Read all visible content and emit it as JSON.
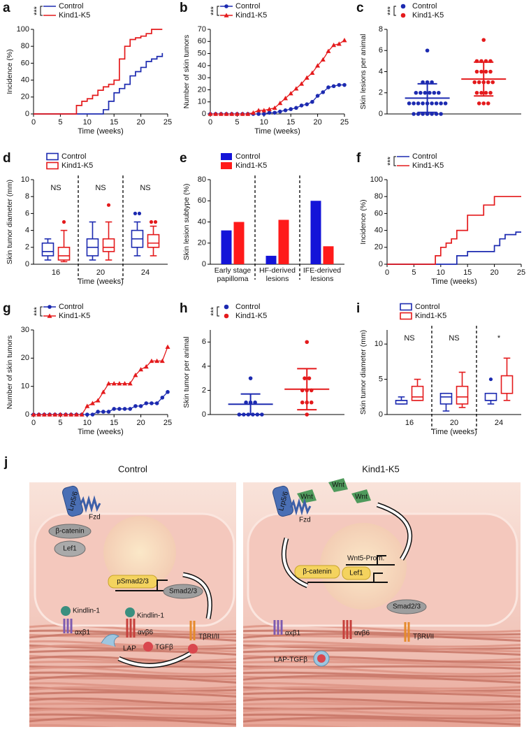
{
  "chart_data": [
    {
      "panel": "a",
      "type": "step",
      "ylabel": "Incidence (%)",
      "xlabel": "Time (weeks)",
      "significance": "***",
      "xlim": [
        0,
        25
      ],
      "xticks": [
        0,
        5,
        10,
        15,
        20,
        25
      ],
      "ylim": [
        0,
        100
      ],
      "yticks": [
        0,
        20,
        40,
        60,
        80,
        100
      ],
      "series": [
        {
          "name": "Control",
          "color": "#1c2ab0",
          "x": [
            0,
            13,
            14,
            15,
            16,
            17,
            18,
            19,
            20,
            21,
            22,
            23,
            24
          ],
          "values": [
            0,
            5,
            15,
            25,
            30,
            35,
            45,
            50,
            55,
            62,
            65,
            68,
            72
          ]
        },
        {
          "name": "Kind1-K5",
          "color": "#e41a1c",
          "x": [
            0,
            8,
            9,
            10,
            11,
            12,
            13,
            14,
            15,
            16,
            17,
            18,
            19,
            20,
            21,
            22,
            24
          ],
          "values": [
            0,
            10,
            15,
            18,
            22,
            28,
            32,
            35,
            40,
            65,
            80,
            88,
            90,
            92,
            95,
            100,
            100
          ]
        }
      ]
    },
    {
      "panel": "b",
      "type": "line",
      "ylabel": "Number of skin tumors",
      "xlabel": "Time (weeks)",
      "significance": "***",
      "xlim": [
        0,
        25
      ],
      "xticks": [
        0,
        5,
        10,
        15,
        20,
        25
      ],
      "ylim": [
        0,
        70
      ],
      "yticks": [
        0,
        10,
        20,
        30,
        40,
        50,
        60,
        70
      ],
      "x": [
        0,
        1,
        2,
        3,
        4,
        5,
        6,
        7,
        8,
        9,
        10,
        11,
        12,
        13,
        14,
        15,
        16,
        17,
        18,
        19,
        20,
        21,
        22,
        23,
        24,
        25
      ],
      "series": [
        {
          "name": "Control",
          "color": "#1c2ab0",
          "marker": "circle",
          "values": [
            0,
            0,
            0,
            0,
            0,
            0,
            0,
            0,
            0,
            0,
            0,
            1,
            1,
            2,
            3,
            4,
            5,
            7,
            8,
            10,
            15,
            18,
            22,
            23,
            24,
            24
          ]
        },
        {
          "name": "Kind1-K5",
          "color": "#e41a1c",
          "marker": "triangle",
          "values": [
            0,
            0,
            0,
            0,
            0,
            0,
            0,
            0,
            1,
            3,
            3,
            4,
            5,
            9,
            13,
            17,
            21,
            25,
            30,
            34,
            40,
            45,
            52,
            57,
            58,
            61
          ]
        }
      ]
    },
    {
      "panel": "c",
      "type": "dotplot",
      "ylabel": "Skin lesions per animal",
      "significance": "***",
      "ylim": [
        0,
        8
      ],
      "yticks": [
        0,
        2,
        4,
        6,
        8
      ],
      "series": [
        {
          "name": "Control",
          "color": "#1c2ab0",
          "values": [
            0,
            0,
            0,
            0,
            0,
            0,
            0,
            1,
            1,
            1,
            1,
            1,
            1,
            1,
            1,
            1,
            2,
            2,
            2,
            2,
            2,
            2,
            3,
            3,
            3,
            6
          ],
          "mean": 1.5,
          "sd": 1.35
        },
        {
          "name": "Kind1-K5",
          "color": "#e41a1c",
          "values": [
            1,
            1,
            1,
            2,
            2,
            2,
            2,
            3,
            3,
            3,
            3,
            3,
            4,
            4,
            4,
            4,
            5,
            5,
            5,
            5,
            7
          ],
          "mean": 3.3,
          "sd": 1.6
        }
      ]
    },
    {
      "panel": "d",
      "type": "box",
      "ylabel": "Skin tumor diameter (mm)",
      "xlabel": "Time (weeks)",
      "categories": [
        "16",
        "20",
        "24"
      ],
      "annotations": [
        "NS",
        "NS",
        "NS"
      ],
      "ylim": [
        0,
        10
      ],
      "yticks": [
        0,
        2,
        4,
        6,
        8,
        10
      ],
      "series": [
        {
          "name": "Control",
          "color": "#1c2ab0",
          "boxes": [
            {
              "min": 0.5,
              "q1": 1,
              "median": 1.5,
              "q3": 2.5,
              "max": 3,
              "outliers": []
            },
            {
              "min": 0.5,
              "q1": 1,
              "median": 2,
              "q3": 3,
              "max": 5,
              "outliers": []
            },
            {
              "min": 1,
              "q1": 2,
              "median": 3,
              "q3": 4,
              "max": 5,
              "outliers": [
                6,
                6
              ]
            }
          ]
        },
        {
          "name": "Kind1-K5",
          "color": "#e41a1c",
          "boxes": [
            {
              "min": 0.3,
              "q1": 0.5,
              "median": 1,
              "q3": 2,
              "max": 4,
              "outliers": [
                5
              ]
            },
            {
              "min": 0.5,
              "q1": 1.5,
              "median": 2,
              "q3": 3,
              "max": 5,
              "outliers": [
                7
              ]
            },
            {
              "min": 1,
              "q1": 2,
              "median": 2.5,
              "q3": 3.5,
              "max": 4.5,
              "outliers": [
                5,
                5
              ]
            }
          ]
        }
      ]
    },
    {
      "panel": "e",
      "type": "bar",
      "ylabel": "Skin lesion subtype (%)",
      "categories": [
        "Early stage papilloma",
        "HF-derived lesions",
        "IFE-derived lesions"
      ],
      "ylim": [
        0,
        80
      ],
      "yticks": [
        0,
        20,
        40,
        60,
        80
      ],
      "series": [
        {
          "name": "Control",
          "color": "#1414d8",
          "values": [
            32,
            8,
            60
          ]
        },
        {
          "name": "Kind1-K5",
          "color": "#ff1a1a",
          "values": [
            40,
            42,
            17
          ]
        }
      ]
    },
    {
      "panel": "f",
      "type": "step",
      "ylabel": "Incidence (%)",
      "xlabel": "Time (weeks)",
      "significance": "***",
      "xlim": [
        0,
        25
      ],
      "xticks": [
        0,
        5,
        10,
        15,
        20,
        25
      ],
      "ylim": [
        0,
        100
      ],
      "yticks": [
        0,
        20,
        40,
        60,
        80,
        100
      ],
      "series": [
        {
          "name": "Control",
          "color": "#1c2ab0",
          "x": [
            0,
            13,
            15,
            20,
            21,
            22,
            24,
            25
          ],
          "values": [
            0,
            10,
            15,
            22,
            30,
            35,
            38,
            38
          ]
        },
        {
          "name": "Kind1-K5",
          "color": "#e41a1c",
          "x": [
            0,
            9,
            10,
            11,
            12,
            13,
            15,
            18,
            20,
            25
          ],
          "values": [
            0,
            10,
            20,
            25,
            30,
            40,
            58,
            70,
            80,
            80
          ]
        }
      ]
    },
    {
      "panel": "g",
      "type": "line",
      "ylabel": "Number of skin tumors",
      "xlabel": "Time (weeks)",
      "significance": "***",
      "xlim": [
        0,
        25
      ],
      "xticks": [
        0,
        5,
        10,
        15,
        20,
        25
      ],
      "ylim": [
        0,
        30
      ],
      "yticks": [
        0,
        10,
        20,
        30
      ],
      "x": [
        0,
        1,
        2,
        3,
        4,
        5,
        6,
        7,
        8,
        9,
        10,
        11,
        12,
        13,
        14,
        15,
        16,
        17,
        18,
        19,
        20,
        21,
        22,
        23,
        24,
        25
      ],
      "series": [
        {
          "name": "Control",
          "color": "#1c2ab0",
          "marker": "circle",
          "values": [
            0,
            0,
            0,
            0,
            0,
            0,
            0,
            0,
            0,
            0,
            0,
            0,
            1,
            1,
            1,
            2,
            2,
            2,
            2,
            3,
            3,
            4,
            4,
            4,
            6,
            8
          ]
        },
        {
          "name": "Kind1-K5",
          "color": "#e41a1c",
          "marker": "triangle",
          "values": [
            0,
            0,
            0,
            0,
            0,
            0,
            0,
            0,
            0,
            0,
            3,
            4,
            5,
            8,
            11,
            11,
            11,
            11,
            11,
            14,
            16,
            17,
            19,
            19,
            19,
            24
          ]
        }
      ]
    },
    {
      "panel": "h",
      "type": "dotplot",
      "ylabel": "Skin tumor per animal",
      "significance": "***",
      "ylim": [
        0,
        7
      ],
      "yticks": [
        0,
        2,
        4,
        6
      ],
      "series": [
        {
          "name": "Control",
          "color": "#1c2ab0",
          "values": [
            0,
            0,
            0,
            0,
            0,
            0,
            1,
            1,
            1,
            3
          ],
          "mean": 0.85,
          "sd": 0.85
        },
        {
          "name": "Kind1-K5",
          "color": "#e41a1c",
          "values": [
            0,
            1,
            1,
            1,
            2,
            2,
            2,
            3,
            3,
            6
          ],
          "mean": 2.1,
          "sd": 1.7
        }
      ]
    },
    {
      "panel": "i",
      "type": "box",
      "ylabel": "Skin tumor diameter (mm)",
      "xlabel": "Time (weeks)",
      "categories": [
        "16",
        "20",
        "24"
      ],
      "annotations": [
        "NS",
        "NS",
        "*"
      ],
      "ylim": [
        0,
        12
      ],
      "yticks": [
        0,
        5,
        10
      ],
      "series": [
        {
          "name": "Control",
          "color": "#1c2ab0",
          "boxes": [
            {
              "min": 1.5,
              "q1": 1.5,
              "median": 2,
              "q3": 2,
              "max": 2.5,
              "outliers": []
            },
            {
              "min": 0.5,
              "q1": 1.5,
              "median": 2.5,
              "q3": 3,
              "max": 3,
              "outliers": []
            },
            {
              "min": 1.5,
              "q1": 2,
              "median": 2,
              "q3": 3,
              "max": 3,
              "outliers": [
                5
              ]
            }
          ]
        },
        {
          "name": "Kind1-K5",
          "color": "#e41a1c",
          "boxes": [
            {
              "min": 2,
              "q1": 2,
              "median": 2.5,
              "q3": 4,
              "max": 5,
              "outliers": []
            },
            {
              "min": 1,
              "q1": 1.5,
              "median": 2.5,
              "q3": 4,
              "max": 6,
              "outliers": []
            },
            {
              "min": 2,
              "q1": 3,
              "median": 3,
              "q3": 5.5,
              "max": 8,
              "outliers": []
            }
          ]
        }
      ]
    }
  ],
  "diagram": {
    "panel": "j",
    "left": {
      "title": "Control",
      "labels": [
        "Lrp5/6",
        "Fzd",
        "β-catenin",
        "Lef1",
        "pSmad2/3",
        "Smad2/3",
        "Kindlin-1",
        "Kindlin-1",
        "αxβ1",
        "αvβ6",
        "TβRI/II",
        "LAP",
        "TGFβ"
      ]
    },
    "right": {
      "title": "Kind1-K5",
      "labels": [
        "Wnt",
        "Wnt",
        "Wnt",
        "Lrp5/6",
        "Fzd",
        "Wnt5-Prom.",
        "β-catenin",
        "Lef1",
        "Smad2/3",
        "αxβ1",
        "αvβ6",
        "TβRI/II",
        "LAP-TGFβ"
      ]
    }
  }
}
